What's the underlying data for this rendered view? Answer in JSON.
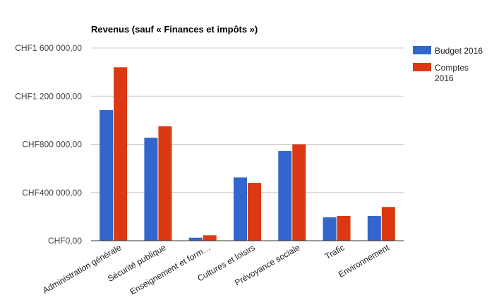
{
  "chart_data": {
    "type": "bar",
    "title": "Revenus (sauf « Finances et impôts »)",
    "xlabel": "",
    "ylabel": "",
    "ylim": [
      0,
      1600000
    ],
    "yticks": [
      {
        "value": 0,
        "label": "CHF0,00"
      },
      {
        "value": 400000,
        "label": "CHF400 000,00"
      },
      {
        "value": 800000,
        "label": "CHF800 000,00"
      },
      {
        "value": 1200000,
        "label": "CHF1 200 000,00"
      },
      {
        "value": 1600000,
        "label": "CHF1 600 000,00"
      }
    ],
    "grid": true,
    "legend_position": "right",
    "categories": [
      "Administration générale",
      "Sécurité publique",
      "Enseignement et form…",
      "Cultures et loisirs",
      "Prévoyance sociale",
      "Trafic",
      "Environnement"
    ],
    "series": [
      {
        "name": "Budget 2016",
        "legend_lines": [
          "Budget 2016"
        ],
        "color": "#3366cc",
        "values": [
          1085000,
          855000,
          25000,
          525000,
          745000,
          195000,
          205000
        ]
      },
      {
        "name": "Comptes 2016",
        "legend_lines": [
          "Comptes",
          "2016"
        ],
        "color": "#dc3912",
        "values": [
          1440000,
          950000,
          45000,
          480000,
          800000,
          205000,
          280000
        ]
      }
    ]
  }
}
